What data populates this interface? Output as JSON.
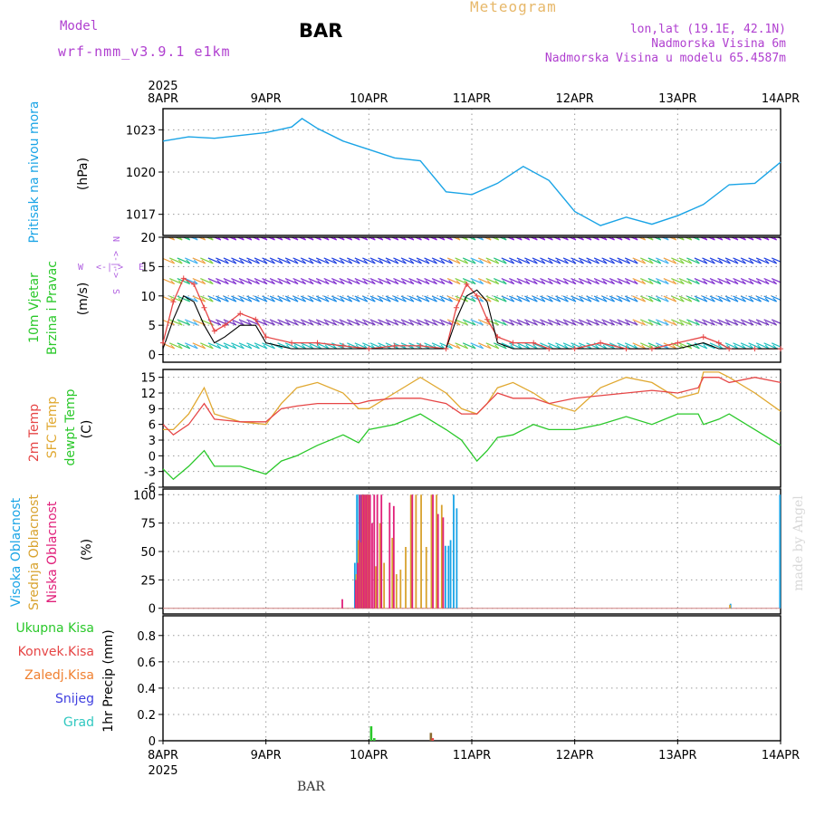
{
  "header": {
    "model_label": "Model",
    "model_name": "wrf-nmm_v3.9.1 e1km",
    "station": "BAR",
    "title": "Meteogram",
    "coords": "lon,lat (19.1E, 42.1N)",
    "altitude": "Nadmorska Visina 6m",
    "model_altitude": "Nadmorska Visina u modelu 65.4587m"
  },
  "footer": {
    "station": "BAR"
  },
  "watermark": "made by Angel",
  "colors": {
    "pressure": "#1aa4e6",
    "temp2m": "#e64646",
    "sfc_temp": "#e0a830",
    "dewpt": "#2ac82a",
    "wind_speed": "#e64646",
    "wind_gust": "#000000",
    "visoka": "#1aa4e6",
    "srednja": "#d8a22e",
    "niska": "#e0207a",
    "ukupna": "#2ac82a",
    "konvek": "#e64646",
    "zaledj": "#f08030",
    "snijeg": "#4040e0",
    "grad": "#30c8c0"
  },
  "time_axis": {
    "year": "2025",
    "ticks": [
      "8APR",
      "9APR",
      "10APR",
      "11APR",
      "12APR",
      "13APR",
      "14APR"
    ]
  },
  "panels": {
    "pressure": {
      "label": "Pritisak na nivou mora",
      "unit": "(hPa)"
    },
    "wind": {
      "label1": "10m Vjetar",
      "label2": "Brzina i Pravac",
      "unit": "(m/s)",
      "compass_n": "N",
      "compass_s": "S",
      "compass_w": "W",
      "compass_e": "E",
      "compass_arrows_h": "<-|->",
      "compass_arrows_v": "<-|->"
    },
    "temp": {
      "label1": "2m Temp",
      "label2": "SFC Temp",
      "label3": "dewpt Temp",
      "unit": "(C)"
    },
    "cloud": {
      "label1": "Visoka Oblacnost",
      "label2": "Srednja Oblacnost",
      "label3": "Niska Oblacnost",
      "unit": "(%)"
    },
    "precip": {
      "label1": "Ukupna Kisa",
      "label2": "Konvek.Kisa",
      "label3": "Zaledj.Kisa",
      "label4": "Snijeg",
      "label5": "Grad",
      "unit": "1hr Precip (mm)"
    }
  },
  "chart_data": [
    {
      "type": "line",
      "panel": "pressure",
      "ylabel": "Pritisak na nivou mora",
      "ylim": [
        1015.5,
        1024.5
      ],
      "yticks": [
        1017,
        1020,
        1023
      ],
      "grid": true,
      "x_days": [
        0,
        0.25,
        0.5,
        0.75,
        1.0,
        1.25,
        1.35,
        1.5,
        1.75,
        2.0,
        2.25,
        2.5,
        2.75,
        3.0,
        3.25,
        3.5,
        3.75,
        4.0,
        4.25,
        4.5,
        4.75,
        5.0,
        5.25,
        5.5,
        5.75,
        6.0
      ],
      "series": [
        {
          "values": [
            1022.2,
            1022.5,
            1022.4,
            1022.6,
            1022.8,
            1023.2,
            1023.8,
            1023.1,
            1022.2,
            1021.6,
            1021.0,
            1020.8,
            1018.6,
            1018.4,
            1019.2,
            1020.4,
            1019.4,
            1017.2,
            1016.2,
            1016.8,
            1016.3,
            1016.9,
            1017.7,
            1019.1,
            1019.2,
            1020.7
          ]
        }
      ]
    },
    {
      "type": "line",
      "panel": "wind",
      "ylabel": "10m Vjetar Brzina i Pravac",
      "ylim": [
        -1.3,
        20
      ],
      "yticks": [
        0,
        5,
        10,
        15,
        20
      ],
      "grid": true,
      "x_days": [
        0,
        0.1,
        0.2,
        0.3,
        0.4,
        0.5,
        0.6,
        0.75,
        0.9,
        1.0,
        1.25,
        1.5,
        1.75,
        2.0,
        2.25,
        2.5,
        2.75,
        2.85,
        2.95,
        3.05,
        3.15,
        3.25,
        3.4,
        3.6,
        3.75,
        4.0,
        4.25,
        4.5,
        4.75,
        5.0,
        5.25,
        5.4,
        5.5,
        5.75,
        6.0
      ],
      "series": [
        {
          "values": [
            2,
            9,
            13,
            12,
            8,
            4,
            5,
            7,
            6,
            3,
            2,
            2,
            1.5,
            1,
            1.5,
            1.5,
            1,
            8,
            12,
            10,
            6,
            3,
            2,
            2,
            1,
            1,
            2,
            1,
            1,
            2,
            3,
            2,
            1,
            1,
            1
          ]
        },
        {
          "values": [
            1,
            6,
            10,
            9,
            5,
            2,
            3,
            5,
            5,
            2,
            1,
            1,
            1,
            1,
            1,
            1,
            1,
            6,
            10,
            11,
            9,
            2,
            1,
            1,
            1,
            1,
            1,
            1,
            1,
            1,
            2,
            1,
            1,
            1,
            1
          ]
        }
      ]
    },
    {
      "type": "line",
      "panel": "temp",
      "ylabel": "(C)",
      "ylim": [
        -6,
        16.5
      ],
      "yticks": [
        -6,
        -3,
        0,
        3,
        6,
        9,
        12,
        15
      ],
      "grid": true,
      "x_days": [
        0,
        0.1,
        0.25,
        0.4,
        0.5,
        0.75,
        1.0,
        1.15,
        1.3,
        1.5,
        1.75,
        1.9,
        2.0,
        2.25,
        2.5,
        2.75,
        2.9,
        3.05,
        3.15,
        3.25,
        3.4,
        3.6,
        3.75,
        4.0,
        4.25,
        4.5,
        4.75,
        5.0,
        5.2,
        5.25,
        5.4,
        5.5,
        5.75,
        6.0
      ],
      "series": [
        {
          "values": [
            6,
            4,
            6,
            10,
            7,
            6.5,
            6.5,
            9,
            9.5,
            10,
            10,
            10,
            10.5,
            11,
            11,
            10,
            8,
            8,
            10,
            12,
            11,
            11,
            10,
            11,
            11.5,
            12,
            12.5,
            12,
            13,
            15,
            15,
            14,
            15,
            14
          ]
        },
        {
          "values": [
            5,
            5,
            8,
            13,
            8,
            6.5,
            6,
            10,
            13,
            14,
            12,
            9,
            9,
            12,
            15,
            12,
            9,
            8,
            10,
            13,
            14,
            12,
            10,
            8.5,
            13,
            15,
            14,
            11,
            12,
            16,
            16,
            15,
            12,
            8.5
          ]
        },
        {
          "values": [
            -2.5,
            -4.5,
            -2,
            1,
            -2,
            -2,
            -3.5,
            -1,
            0,
            2,
            4,
            2.5,
            5,
            6,
            8,
            5,
            3,
            -1,
            1,
            3.5,
            4,
            6,
            5,
            5,
            6,
            7.5,
            6,
            8,
            8,
            6,
            7,
            8,
            5,
            2
          ]
        }
      ]
    },
    {
      "type": "bar",
      "panel": "cloud",
      "ylabel": "(%)",
      "ylim": [
        -5,
        105
      ],
      "yticks": [
        0,
        25,
        50,
        75,
        100
      ],
      "grid": true,
      "x_days": [
        1.72,
        1.85,
        1.87,
        1.89,
        1.91,
        1.93,
        1.95,
        1.97,
        1.99,
        2.01,
        2.03,
        2.06,
        2.1,
        2.14,
        2.18,
        2.22,
        2.26,
        2.3,
        2.35,
        2.4,
        2.45,
        2.5,
        2.55,
        2.6,
        2.65,
        2.7,
        2.75,
        2.78,
        2.8,
        2.83,
        2.86,
        2.9,
        5.5,
        5.52,
        6.0
      ],
      "series": [
        {
          "name": "Visoka Oblacnost",
          "values": [
            0,
            0,
            40,
            100,
            100,
            100,
            100,
            100,
            100,
            100,
            0,
            0,
            0,
            0,
            0,
            0,
            0,
            0,
            0,
            0,
            0,
            0,
            0,
            0,
            0,
            0,
            55,
            55,
            60,
            100,
            88,
            0,
            0,
            4,
            100
          ]
        },
        {
          "name": "Srednja Oblacnost",
          "values": [
            0,
            0,
            30,
            60,
            58,
            100,
            100,
            100,
            100,
            0,
            0,
            37,
            75,
            40,
            0,
            62,
            30,
            34,
            54,
            100,
            100,
            100,
            54,
            100,
            100,
            91,
            0,
            0,
            0,
            0,
            0,
            0,
            3,
            0,
            0
          ]
        },
        {
          "name": "Niska Oblacnost",
          "values": [
            8,
            25,
            40,
            100,
            100,
            100,
            100,
            100,
            100,
            75,
            100,
            100,
            100,
            0,
            93,
            90,
            0,
            0,
            0,
            100,
            0,
            0,
            0,
            100,
            83,
            80,
            0,
            0,
            0,
            0,
            0,
            0,
            0,
            0,
            0
          ]
        }
      ]
    },
    {
      "type": "bar",
      "panel": "precip",
      "ylabel": "1hr Precip (mm)",
      "ylim": [
        0,
        0.95
      ],
      "yticks": [
        0,
        0.2,
        0.4,
        0.6,
        0.8
      ],
      "grid": true,
      "x_days": [
        2.02,
        2.05,
        2.6
      ],
      "series": [
        {
          "name": "Ukupna Kisa",
          "values": [
            0.11,
            0.02,
            0.06
          ]
        },
        {
          "name": "Konvek.Kisa",
          "values": [
            0,
            0,
            0.02
          ]
        },
        {
          "name": "Zaledj.Kisa",
          "values": [
            0,
            0,
            0
          ]
        },
        {
          "name": "Snijeg",
          "values": [
            0,
            0,
            0
          ]
        },
        {
          "name": "Grad",
          "values": [
            0,
            0,
            0
          ]
        }
      ]
    }
  ]
}
